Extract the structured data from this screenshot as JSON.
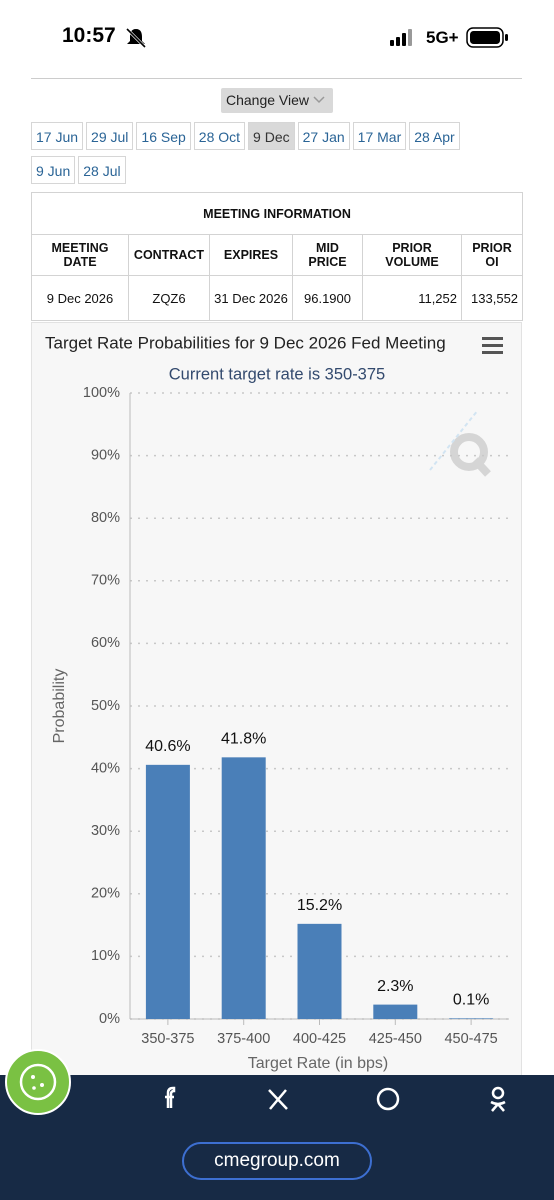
{
  "status_bar": {
    "time": "10:57",
    "network": "5G+"
  },
  "change_view": "Change View",
  "tabs": [
    "17 Jun",
    "29 Jul",
    "16 Sep",
    "28 Oct",
    "9 Dec",
    "27 Jan",
    "17 Mar",
    "28 Apr",
    "9 Jun",
    "28 Jul"
  ],
  "selected_tab": 4,
  "table": {
    "title": "MEETING INFORMATION",
    "headers": [
      "MEETING DATE",
      "CONTRACT",
      "EXPIRES",
      "MID PRICE",
      "PRIOR VOLUME",
      "PRIOR OI"
    ],
    "rows": [
      [
        "9 Dec 2026",
        "ZQZ6",
        "31 Dec 2026",
        "96.1900",
        "11,252",
        "133,552"
      ]
    ]
  },
  "chart_data": {
    "type": "bar",
    "title": "Target Rate Probabilities for 9 Dec 2026 Fed Meeting",
    "subtitle": "Current target rate is 350-375",
    "x_label": "Target Rate (in bps)",
    "y_label": "Probability",
    "categories": [
      "350-375",
      "375-400",
      "400-425",
      "425-450",
      "450-475"
    ],
    "values": [
      40.6,
      41.8,
      15.2,
      2.3,
      0.1
    ],
    "value_labels": [
      "40.6%",
      "41.8%",
      "15.2%",
      "2.3%",
      "0.1%"
    ],
    "color": "#4a7fb8",
    "ylim": [
      0,
      100
    ],
    "yticks": [
      {
        "value": 0,
        "label": "0%"
      },
      {
        "value": 10,
        "label": "10%"
      },
      {
        "value": 20,
        "label": "20%"
      },
      {
        "value": 30,
        "label": "30%"
      },
      {
        "value": 40,
        "label": "40%"
      },
      {
        "value": 50,
        "label": "50%"
      },
      {
        "value": 60,
        "label": "60%"
      },
      {
        "value": 70,
        "label": "70%"
      },
      {
        "value": 80,
        "label": "80%"
      },
      {
        "value": 90,
        "label": "90%"
      },
      {
        "value": 100,
        "label": "100%"
      }
    ],
    "grid": true
  },
  "share_bar": {
    "url": "cmegroup.com"
  }
}
